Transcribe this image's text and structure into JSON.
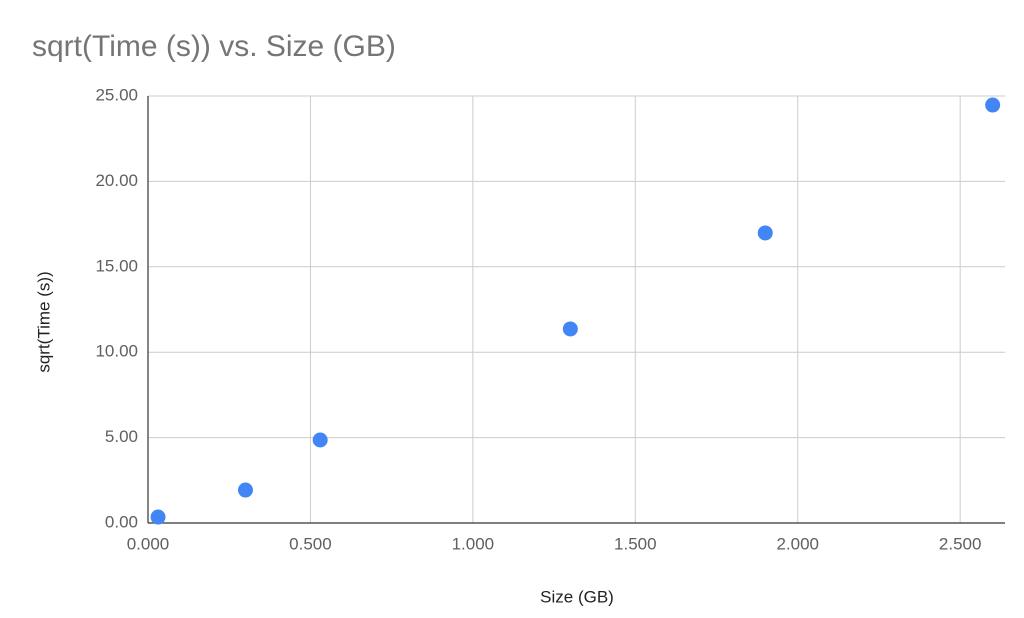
{
  "chart_data": {
    "type": "scatter",
    "title": "sqrt(Time (s)) vs. Size (GB)",
    "x_label": "Size (GB)",
    "y_label": "sqrt(Time (s))",
    "series": [
      {
        "name": "sqrt(Time (s))",
        "color": "#4285f4",
        "x": [
          0.031,
          0.3,
          0.53,
          1.3,
          1.9,
          2.6
        ],
        "values": [
          0.35,
          1.93,
          4.86,
          11.36,
          16.98,
          24.47
        ]
      }
    ],
    "xlim": [
      0,
      2.638
    ],
    "ylim": [
      0,
      25
    ],
    "xticks": [
      {
        "value": 0,
        "label": "0.000"
      },
      {
        "value": 0.5,
        "label": "0.500"
      },
      {
        "value": 1,
        "label": "1.000"
      },
      {
        "value": 1.5,
        "label": "1.500"
      },
      {
        "value": 2,
        "label": "2.000"
      },
      {
        "value": 2.5,
        "label": "2.500"
      }
    ],
    "yticks": [
      {
        "value": 0,
        "label": "0.00"
      },
      {
        "value": 5,
        "label": "5.00"
      },
      {
        "value": 10,
        "label": "10.00"
      },
      {
        "value": 15,
        "label": "15.00"
      },
      {
        "value": 20,
        "label": "20.00"
      },
      {
        "value": 25,
        "label": "25.00"
      }
    ],
    "grid": true
  }
}
